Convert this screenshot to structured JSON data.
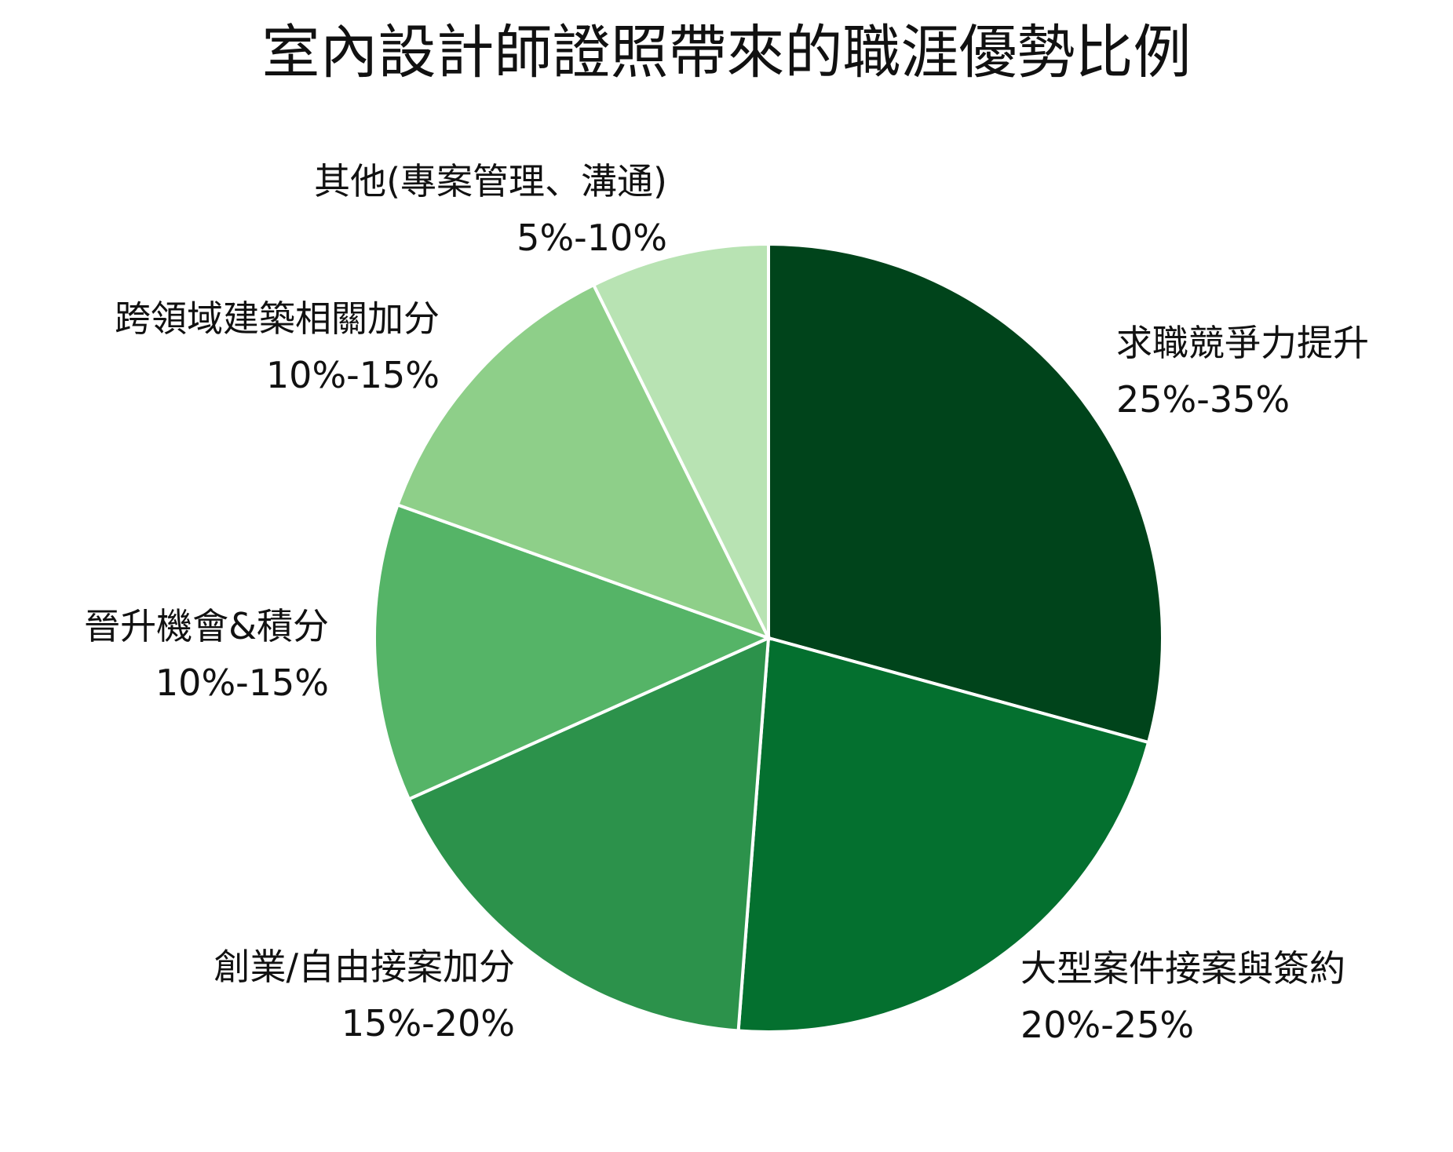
{
  "chart_data": {
    "type": "pie",
    "title": "室內設計師證照帶來的職涯優勢比例",
    "start_angle": "top, clockwise",
    "slices": [
      {
        "label": "求職競爭力提升",
        "range": "25%-35%",
        "value": 30,
        "color": "#00441b"
      },
      {
        "label": "大型案件接案與簽約",
        "range": "20%-25%",
        "value": 22.5,
        "color": "#04702f"
      },
      {
        "label": "創業/自由接案加分",
        "range": "15%-20%",
        "value": 17.5,
        "color": "#2c924b"
      },
      {
        "label": "晉升機會&積分",
        "range": "10%-15%",
        "value": 12.5,
        "color": "#55b467"
      },
      {
        "label": "跨領域建築相關加分",
        "range": "10%-15%",
        "value": 12.5,
        "color": "#8ecf89"
      },
      {
        "label": "其他(專案管理、溝通)",
        "range": "5%-10%",
        "value": 7.5,
        "color": "#b8e3b3"
      }
    ]
  }
}
